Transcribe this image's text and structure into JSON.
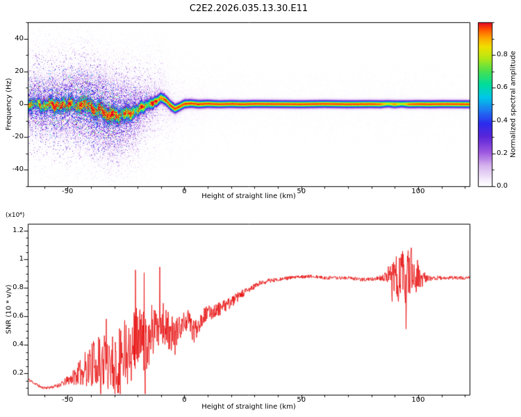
{
  "title": "C2E2.2026.035.13.30.E11",
  "colors": {
    "background": "#ffffff",
    "axis": "#000000",
    "snr_line": "#e60000"
  },
  "chart_data": [
    {
      "type": "heatmap",
      "title": "C2E2.2026.035.13.30.E11",
      "xlabel": "Height of straight line (km)",
      "ylabel": "Frequency (Hz)",
      "xlim": [
        -67,
        122
      ],
      "ylim": [
        -50,
        50
      ],
      "xticks": {
        "values": [
          -50,
          0,
          50,
          100
        ],
        "labels": [
          "-50",
          "0",
          "50",
          "100"
        ]
      },
      "yticks": {
        "values": [
          -40,
          -20,
          0,
          20,
          40
        ],
        "labels": [
          "-40",
          "-20",
          "0",
          "20",
          "40"
        ]
      },
      "minor_x_step": 10,
      "minor_y_step": 10,
      "grid": false,
      "colorbar": {
        "label": "Normalized spectral amplitude",
        "range": [
          0,
          1
        ],
        "ticks": {
          "values": [
            0,
            0.2,
            0.4,
            0.6,
            0.8
          ],
          "labels": [
            "0.0",
            "0.2",
            "0.4",
            "0.6",
            "0.8"
          ]
        },
        "minor_step": 0.1
      },
      "colormap_stops": [
        [
          0.0,
          "#ffffff"
        ],
        [
          0.04,
          "#f3eafb"
        ],
        [
          0.12,
          "#d7b4ee"
        ],
        [
          0.2,
          "#a05ae0"
        ],
        [
          0.3,
          "#5a25d8"
        ],
        [
          0.38,
          "#2b2bee"
        ],
        [
          0.46,
          "#1e78f0"
        ],
        [
          0.54,
          "#00c8e8"
        ],
        [
          0.62,
          "#00dc9b"
        ],
        [
          0.7,
          "#49e04e"
        ],
        [
          0.78,
          "#b4e614"
        ],
        [
          0.85,
          "#f0e000"
        ],
        [
          0.91,
          "#ff9d00"
        ],
        [
          0.96,
          "#ff4b00"
        ],
        [
          1.0,
          "#e3002b"
        ]
      ],
      "trace": {
        "x": [
          -67,
          -64,
          -61,
          -58,
          -56,
          -53,
          -50,
          -48,
          -45,
          -43,
          -40,
          -38,
          -36,
          -34,
          -32,
          -30,
          -28,
          -26,
          -24,
          -22,
          -20,
          -18,
          -16,
          -14,
          -12,
          -10,
          -8,
          -6,
          -4,
          -2,
          0,
          3,
          6,
          10,
          15,
          20,
          25,
          30,
          40,
          50,
          60,
          70,
          80,
          84,
          87,
          90,
          93,
          96,
          100,
          105,
          110,
          122
        ],
        "center_hz": [
          -0.5,
          0.4,
          -1.5,
          0.3,
          -1.8,
          -0.5,
          -2.0,
          0.6,
          -1.2,
          0.4,
          -2.2,
          -4.8,
          -3.2,
          -6.0,
          -7.6,
          -5.2,
          -7.8,
          -6.2,
          -4.5,
          -5.2,
          -3.5,
          -2.2,
          -1.0,
          0.6,
          2.0,
          4.0,
          2.4,
          -0.6,
          -2.8,
          -1.4,
          0.2,
          0.5,
          0.0,
          0.3,
          0.0,
          0.2,
          0.0,
          0.2,
          0.1,
          0.0,
          0.2,
          0.0,
          0.1,
          0.0,
          0.3,
          0.0,
          0.2,
          0.0,
          0.1,
          0.0,
          0.1,
          0.0
        ],
        "amp": [
          0.9,
          0.86,
          0.9,
          0.87,
          0.9,
          0.86,
          0.9,
          0.88,
          0.9,
          0.86,
          0.9,
          0.87,
          0.9,
          0.88,
          0.9,
          0.9,
          0.88,
          0.9,
          0.88,
          0.9,
          0.9,
          0.92,
          0.94,
          0.96,
          0.97,
          0.97,
          0.95,
          0.95,
          0.96,
          0.97,
          0.97,
          0.97,
          0.97,
          0.97,
          0.97,
          0.97,
          0.97,
          0.97,
          0.97,
          0.97,
          0.97,
          0.97,
          0.97,
          0.95,
          0.82,
          0.93,
          0.8,
          0.95,
          0.97,
          0.97,
          0.97,
          0.97
        ],
        "sigma_hz": [
          2.1,
          2.0,
          2.2,
          2.1,
          2.3,
          2.2,
          2.4,
          2.3,
          2.5,
          2.5,
          2.6,
          2.7,
          2.7,
          2.8,
          2.8,
          2.8,
          2.7,
          2.6,
          2.5,
          2.4,
          2.2,
          2.1,
          2.0,
          1.9,
          1.8,
          1.8,
          1.7,
          1.7,
          1.6,
          1.5,
          1.5,
          1.4,
          1.4,
          1.35,
          1.3,
          1.3,
          1.3,
          1.3,
          1.3,
          1.3,
          1.3,
          1.3,
          1.3,
          1.3,
          1.25,
          1.3,
          1.25,
          1.3,
          1.3,
          1.3,
          1.3,
          1.3
        ],
        "fuzz": [
          0.5,
          0.55,
          0.52,
          0.56,
          0.6,
          0.58,
          0.62,
          0.6,
          0.64,
          0.62,
          0.66,
          0.64,
          0.62,
          0.6,
          0.58,
          0.56,
          0.52,
          0.5,
          0.46,
          0.42,
          0.38,
          0.32,
          0.27,
          0.22,
          0.18,
          0.14,
          0.11,
          0.09,
          0.07,
          0.05,
          0.04,
          0.035,
          0.03,
          0.025,
          0.02,
          0.02,
          0.018,
          0.016,
          0.015,
          0.015,
          0.015,
          0.015,
          0.015,
          0.018,
          0.022,
          0.02,
          0.022,
          0.018,
          0.015,
          0.015,
          0.015,
          0.015
        ]
      },
      "noise_seed": 7
    },
    {
      "type": "line",
      "xlabel": "Height of straight line (km)",
      "ylabel": "SNR (10 * v/v)",
      "scale_label": "(x10⁴)",
      "xlim": [
        -67,
        122
      ],
      "ylim": [
        0.05,
        1.25
      ],
      "xticks": {
        "values": [
          -50,
          0,
          50,
          100
        ],
        "labels": [
          "-50",
          "0",
          "50",
          "100"
        ]
      },
      "yticks": {
        "values": [
          0.2,
          0.4,
          0.6,
          0.8,
          1.0,
          1.2
        ],
        "labels": [
          "0.2",
          "0.4",
          "0.6",
          "0.8",
          "1",
          "1.2"
        ]
      },
      "minor_x_step": 10,
      "minor_y_step": 0.05,
      "grid": false,
      "line_color": "#e60000",
      "series": {
        "x": [
          -67,
          -64,
          -61,
          -58,
          -55,
          -52,
          -49,
          -46,
          -44,
          -42,
          -40,
          -38,
          -36,
          -34,
          -32,
          -30,
          -28,
          -26,
          -24,
          -22,
          -20,
          -18,
          -16,
          -14,
          -12,
          -10,
          -8,
          -6,
          -4,
          -2,
          0,
          2,
          4,
          6,
          8,
          10,
          13,
          16,
          20,
          24,
          28,
          32,
          36,
          40,
          45,
          50,
          55,
          60,
          65,
          70,
          75,
          80,
          84,
          87,
          89,
          91,
          93,
          95,
          97,
          99,
          101,
          103,
          106,
          110,
          115,
          122
        ],
        "base": [
          0.16,
          0.13,
          0.1,
          0.1,
          0.11,
          0.13,
          0.16,
          0.19,
          0.21,
          0.24,
          0.26,
          0.28,
          0.27,
          0.3,
          0.3,
          0.28,
          0.33,
          0.37,
          0.4,
          0.43,
          0.47,
          0.44,
          0.42,
          0.5,
          0.54,
          0.58,
          0.52,
          0.48,
          0.45,
          0.52,
          0.56,
          0.58,
          0.48,
          0.55,
          0.6,
          0.62,
          0.64,
          0.66,
          0.7,
          0.75,
          0.79,
          0.83,
          0.85,
          0.86,
          0.87,
          0.88,
          0.88,
          0.87,
          0.87,
          0.87,
          0.86,
          0.86,
          0.87,
          0.88,
          0.9,
          0.82,
          0.92,
          0.85,
          0.95,
          0.88,
          0.86,
          0.87,
          0.87,
          0.87,
          0.87,
          0.87
        ],
        "noise": [
          0.012,
          0.012,
          0.01,
          0.01,
          0.014,
          0.02,
          0.04,
          0.07,
          0.1,
          0.13,
          0.15,
          0.17,
          0.19,
          0.21,
          0.22,
          0.22,
          0.22,
          0.21,
          0.22,
          0.22,
          0.21,
          0.22,
          0.21,
          0.19,
          0.17,
          0.16,
          0.15,
          0.14,
          0.12,
          0.09,
          0.07,
          0.07,
          0.09,
          0.07,
          0.06,
          0.055,
          0.05,
          0.045,
          0.04,
          0.032,
          0.025,
          0.02,
          0.016,
          0.013,
          0.012,
          0.012,
          0.012,
          0.012,
          0.012,
          0.012,
          0.013,
          0.015,
          0.018,
          0.04,
          0.09,
          0.14,
          0.17,
          0.19,
          0.16,
          0.12,
          0.07,
          0.04,
          0.02,
          0.013,
          0.012,
          0.012
        ]
      },
      "spikes": [
        {
          "x0": -43,
          "x1": -4,
          "prob": 0.05,
          "scale": 1.9
        },
        {
          "x0": 87,
          "x1": 101,
          "prob": 0.07,
          "scale": 1.8
        }
      ],
      "noise_seed": 11
    }
  ]
}
